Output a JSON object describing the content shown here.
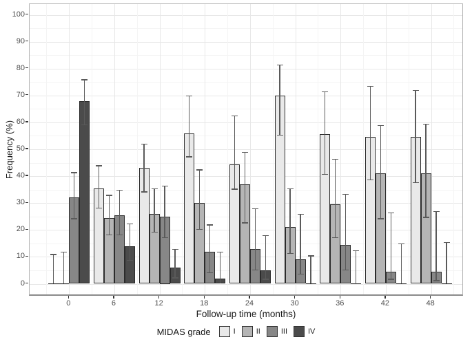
{
  "chart_data": {
    "type": "bar",
    "title": "",
    "xlabel": "Follow-up time (months)",
    "ylabel": "Frequency (%)",
    "ylim": [
      0,
      100
    ],
    "yticks": [
      "0",
      "10",
      "20",
      "30",
      "40",
      "50",
      "60",
      "70",
      "80",
      "90",
      "100"
    ],
    "categories": [
      "0",
      "6",
      "12",
      "18",
      "24",
      "30",
      "36",
      "42",
      "48"
    ],
    "grid": "major+minor, light gray on white",
    "legend_title": "MIDAS grade",
    "legend_position": "bottom",
    "bar_border_color": "#2b2b2b",
    "errorbar_color": "#5a5a5a",
    "series": [
      {
        "name": "I",
        "color": "#e9e9e9",
        "values": [
          0,
          35.5,
          43,
          56,
          44.5,
          70,
          55.5,
          54.5,
          54.5
        ],
        "ci_low": [
          0,
          28,
          34,
          47,
          35,
          55,
          40.5,
          38.5,
          37.5
        ],
        "ci_high": [
          11,
          44,
          52,
          70,
          62.5,
          81.5,
          71.5,
          73.5,
          72
        ]
      },
      {
        "name": "II",
        "color": "#b5b5b5",
        "values": [
          0,
          24.5,
          26,
          30,
          37,
          21,
          29.5,
          41,
          41
        ],
        "ci_low": [
          0,
          18,
          19,
          20,
          22.5,
          11,
          17,
          24,
          24.5
        ],
        "ci_high": [
          12,
          33,
          35.5,
          42.5,
          49,
          35.5,
          46.5,
          59,
          59.5
        ]
      },
      {
        "name": "III",
        "color": "#878787",
        "values": [
          32,
          25.5,
          25,
          12,
          13,
          9,
          14.5,
          4.5,
          4.5
        ],
        "ci_low": [
          24,
          18,
          17,
          4,
          5,
          3.5,
          5,
          1.5,
          1
        ],
        "ci_high": [
          41.5,
          35,
          36.5,
          22,
          28,
          26,
          33.5,
          26.5,
          27
        ]
      },
      {
        "name": "IV",
        "color": "#4b4b4b",
        "values": [
          68,
          14,
          6,
          2,
          5,
          0,
          0,
          0,
          0
        ],
        "ci_low": [
          59,
          8.5,
          2,
          0,
          1.5,
          0,
          0,
          0,
          0
        ],
        "ci_high": [
          76,
          22.5,
          13,
          12,
          18,
          10.5,
          12.5,
          15,
          15.5
        ]
      }
    ]
  }
}
